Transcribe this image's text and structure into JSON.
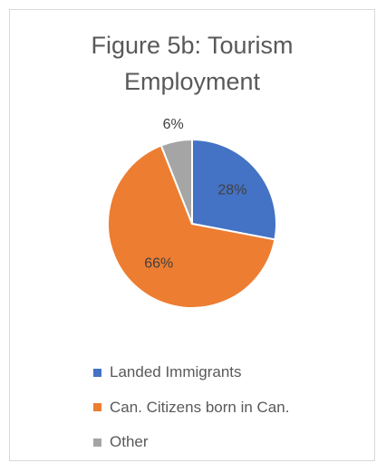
{
  "chart_data": {
    "type": "pie",
    "title": "Figure 5b:  Tourism Employment",
    "categories": [
      "Landed Immigrants",
      "Can. Citizens born in Can.",
      "Other"
    ],
    "values": [
      28,
      66,
      6
    ],
    "value_labels": [
      "28%",
      "66%",
      "6%"
    ],
    "colors": [
      "#4472c4",
      "#ed7d31",
      "#a5a5a5"
    ],
    "legend": "bottom"
  }
}
